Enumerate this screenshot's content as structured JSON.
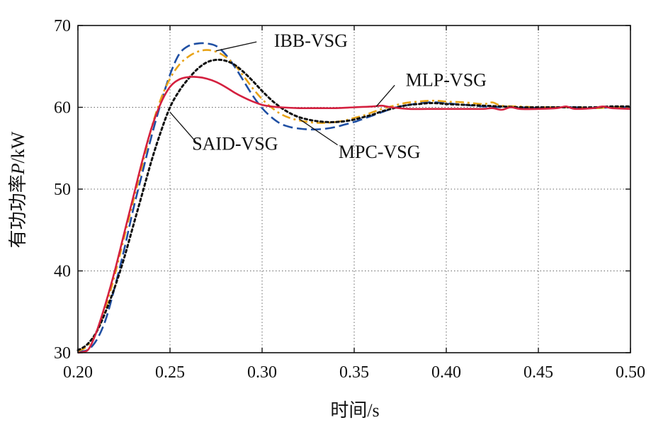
{
  "chart_data": {
    "type": "line",
    "title": "",
    "xlabel": "时间/s",
    "ylabel_prefix": "有功功率",
    "ylabel_var": "P",
    "ylabel_unit": "/kW",
    "xlim": [
      0.2,
      0.5
    ],
    "ylim": [
      30,
      70
    ],
    "x_ticks": [
      "0.20",
      "0.25",
      "0.30",
      "0.35",
      "0.40",
      "0.45",
      "0.50"
    ],
    "y_ticks": [
      "30",
      "40",
      "50",
      "60",
      "70"
    ],
    "grid": true,
    "series": [
      {
        "name": "IBB-VSG",
        "color": "#1f4fa3",
        "style": "dash",
        "points": [
          [
            0.2,
            30.2
          ],
          [
            0.205,
            30.3
          ],
          [
            0.21,
            31.5
          ],
          [
            0.215,
            34
          ],
          [
            0.22,
            38
          ],
          [
            0.225,
            42.5
          ],
          [
            0.23,
            47.5
          ],
          [
            0.235,
            52
          ],
          [
            0.24,
            56.5
          ],
          [
            0.245,
            60.5
          ],
          [
            0.25,
            64
          ],
          [
            0.255,
            66.5
          ],
          [
            0.26,
            67.5
          ],
          [
            0.265,
            67.8
          ],
          [
            0.27,
            67.8
          ],
          [
            0.275,
            67.5
          ],
          [
            0.28,
            66.5
          ],
          [
            0.285,
            65
          ],
          [
            0.29,
            63.2
          ],
          [
            0.295,
            61.4
          ],
          [
            0.3,
            59.9
          ],
          [
            0.305,
            58.8
          ],
          [
            0.31,
            58
          ],
          [
            0.315,
            57.6
          ],
          [
            0.32,
            57.4
          ],
          [
            0.325,
            57.3
          ],
          [
            0.33,
            57.3
          ],
          [
            0.335,
            57.4
          ],
          [
            0.34,
            57.6
          ],
          [
            0.345,
            57.9
          ],
          [
            0.35,
            58.2
          ],
          [
            0.355,
            58.6
          ],
          [
            0.36,
            59
          ],
          [
            0.365,
            59.4
          ],
          [
            0.37,
            59.8
          ],
          [
            0.375,
            60.1
          ],
          [
            0.38,
            60.3
          ],
          [
            0.385,
            60.5
          ],
          [
            0.39,
            60.6
          ],
          [
            0.395,
            60.6
          ],
          [
            0.4,
            60.5
          ],
          [
            0.41,
            60.3
          ],
          [
            0.42,
            60.1
          ],
          [
            0.43,
            60
          ],
          [
            0.44,
            60
          ],
          [
            0.45,
            59.9
          ],
          [
            0.46,
            60
          ],
          [
            0.47,
            60
          ],
          [
            0.48,
            59.9
          ],
          [
            0.49,
            60
          ],
          [
            0.5,
            60
          ]
        ]
      },
      {
        "name": "MPC-VSG",
        "color": "#e8a317",
        "style": "dashdot",
        "points": [
          [
            0.2,
            30.2
          ],
          [
            0.205,
            30.8
          ],
          [
            0.21,
            32.5
          ],
          [
            0.215,
            35.5
          ],
          [
            0.22,
            39.5
          ],
          [
            0.225,
            44
          ],
          [
            0.23,
            48.5
          ],
          [
            0.235,
            53
          ],
          [
            0.24,
            57.5
          ],
          [
            0.245,
            61
          ],
          [
            0.25,
            63.5
          ],
          [
            0.255,
            65.2
          ],
          [
            0.26,
            66.2
          ],
          [
            0.265,
            66.8
          ],
          [
            0.27,
            67
          ],
          [
            0.275,
            66.8
          ],
          [
            0.28,
            66.2
          ],
          [
            0.285,
            65.2
          ],
          [
            0.29,
            63.8
          ],
          [
            0.295,
            62.3
          ],
          [
            0.3,
            61
          ],
          [
            0.305,
            60
          ],
          [
            0.31,
            59.2
          ],
          [
            0.315,
            58.7
          ],
          [
            0.32,
            58.4
          ],
          [
            0.325,
            58.2
          ],
          [
            0.33,
            58.1
          ],
          [
            0.335,
            58.1
          ],
          [
            0.34,
            58.2
          ],
          [
            0.345,
            58.4
          ],
          [
            0.35,
            58.7
          ],
          [
            0.355,
            59
          ],
          [
            0.36,
            59.4
          ],
          [
            0.365,
            59.8
          ],
          [
            0.37,
            60.1
          ],
          [
            0.375,
            60.4
          ],
          [
            0.38,
            60.6
          ],
          [
            0.385,
            60.7
          ],
          [
            0.39,
            60.8
          ],
          [
            0.395,
            60.8
          ],
          [
            0.4,
            60.7
          ],
          [
            0.41,
            60.6
          ],
          [
            0.42,
            60.4
          ],
          [
            0.425,
            60.6
          ],
          [
            0.43,
            60.2
          ],
          [
            0.44,
            60.1
          ],
          [
            0.45,
            60
          ],
          [
            0.46,
            60
          ],
          [
            0.47,
            60
          ],
          [
            0.48,
            59.9
          ],
          [
            0.49,
            60
          ],
          [
            0.5,
            60
          ]
        ]
      },
      {
        "name": "SAID-VSG",
        "color": "#111111",
        "style": "dot",
        "points": [
          [
            0.2,
            30.3
          ],
          [
            0.205,
            31
          ],
          [
            0.21,
            32.5
          ],
          [
            0.215,
            35
          ],
          [
            0.22,
            38
          ],
          [
            0.225,
            41.5
          ],
          [
            0.23,
            45.5
          ],
          [
            0.235,
            49.5
          ],
          [
            0.24,
            53.5
          ],
          [
            0.245,
            57
          ],
          [
            0.25,
            60
          ],
          [
            0.255,
            62
          ],
          [
            0.26,
            63.5
          ],
          [
            0.265,
            64.7
          ],
          [
            0.27,
            65.5
          ],
          [
            0.275,
            65.8
          ],
          [
            0.28,
            65.7
          ],
          [
            0.285,
            65.2
          ],
          [
            0.29,
            64.3
          ],
          [
            0.295,
            63.2
          ],
          [
            0.3,
            62
          ],
          [
            0.305,
            60.9
          ],
          [
            0.31,
            60
          ],
          [
            0.315,
            59.3
          ],
          [
            0.32,
            58.8
          ],
          [
            0.325,
            58.5
          ],
          [
            0.33,
            58.3
          ],
          [
            0.335,
            58.2
          ],
          [
            0.34,
            58.2
          ],
          [
            0.345,
            58.3
          ],
          [
            0.35,
            58.5
          ],
          [
            0.355,
            58.8
          ],
          [
            0.36,
            59.1
          ],
          [
            0.365,
            59.5
          ],
          [
            0.37,
            59.8
          ],
          [
            0.375,
            60.1
          ],
          [
            0.38,
            60.3
          ],
          [
            0.385,
            60.4
          ],
          [
            0.39,
            60.5
          ],
          [
            0.395,
            60.5
          ],
          [
            0.4,
            60.4
          ],
          [
            0.41,
            60.3
          ],
          [
            0.42,
            60.2
          ],
          [
            0.43,
            60.1
          ],
          [
            0.44,
            60
          ],
          [
            0.45,
            60
          ],
          [
            0.46,
            60
          ],
          [
            0.47,
            60
          ],
          [
            0.48,
            60
          ],
          [
            0.49,
            60.1
          ],
          [
            0.5,
            60.1
          ]
        ]
      },
      {
        "name": "MLP-VSG",
        "color": "#d4203f",
        "style": "solid",
        "points": [
          [
            0.2,
            30
          ],
          [
            0.203,
            30.1
          ],
          [
            0.206,
            30.5
          ],
          [
            0.21,
            32.5
          ],
          [
            0.215,
            36
          ],
          [
            0.22,
            40
          ],
          [
            0.225,
            44.5
          ],
          [
            0.23,
            49
          ],
          [
            0.235,
            53.5
          ],
          [
            0.24,
            57.5
          ],
          [
            0.245,
            60.5
          ],
          [
            0.25,
            62.5
          ],
          [
            0.255,
            63.4
          ],
          [
            0.26,
            63.7
          ],
          [
            0.265,
            63.7
          ],
          [
            0.27,
            63.5
          ],
          [
            0.275,
            63.1
          ],
          [
            0.28,
            62.5
          ],
          [
            0.285,
            61.8
          ],
          [
            0.29,
            61.2
          ],
          [
            0.295,
            60.7
          ],
          [
            0.3,
            60.3
          ],
          [
            0.305,
            60.1
          ],
          [
            0.31,
            60
          ],
          [
            0.32,
            59.9
          ],
          [
            0.33,
            59.9
          ],
          [
            0.34,
            59.9
          ],
          [
            0.35,
            60
          ],
          [
            0.36,
            60.1
          ],
          [
            0.365,
            60.2
          ],
          [
            0.37,
            60
          ],
          [
            0.38,
            59.8
          ],
          [
            0.39,
            59.8
          ],
          [
            0.4,
            59.8
          ],
          [
            0.41,
            59.8
          ],
          [
            0.42,
            59.8
          ],
          [
            0.425,
            59.9
          ],
          [
            0.43,
            59.7
          ],
          [
            0.435,
            60
          ],
          [
            0.44,
            59.8
          ],
          [
            0.45,
            59.8
          ],
          [
            0.46,
            59.9
          ],
          [
            0.465,
            60.1
          ],
          [
            0.47,
            59.8
          ],
          [
            0.48,
            59.9
          ],
          [
            0.485,
            60.1
          ],
          [
            0.49,
            59.9
          ],
          [
            0.5,
            59.8
          ]
        ]
      }
    ],
    "annotations": [
      {
        "label": "IBB-VSG",
        "text_x": 0.3065,
        "text_y": 67.4,
        "from": [
          0.297,
          68.0
        ],
        "to": [
          0.275,
          66.9
        ]
      },
      {
        "label": "MLP-VSG",
        "text_x": 0.378,
        "text_y": 62.6,
        "from": [
          0.372,
          62.7
        ],
        "to": [
          0.362,
          60.1
        ]
      },
      {
        "label": "SAID-VSG",
        "text_x": 0.262,
        "text_y": 54.8,
        "from": [
          0.264,
          55.8
        ],
        "to": [
          0.25,
          59.4
        ]
      },
      {
        "label": "MPC-VSG",
        "text_x": 0.3415,
        "text_y": 53.8,
        "from": [
          0.341,
          55.4
        ],
        "to": [
          0.32,
          58.6
        ]
      }
    ]
  }
}
